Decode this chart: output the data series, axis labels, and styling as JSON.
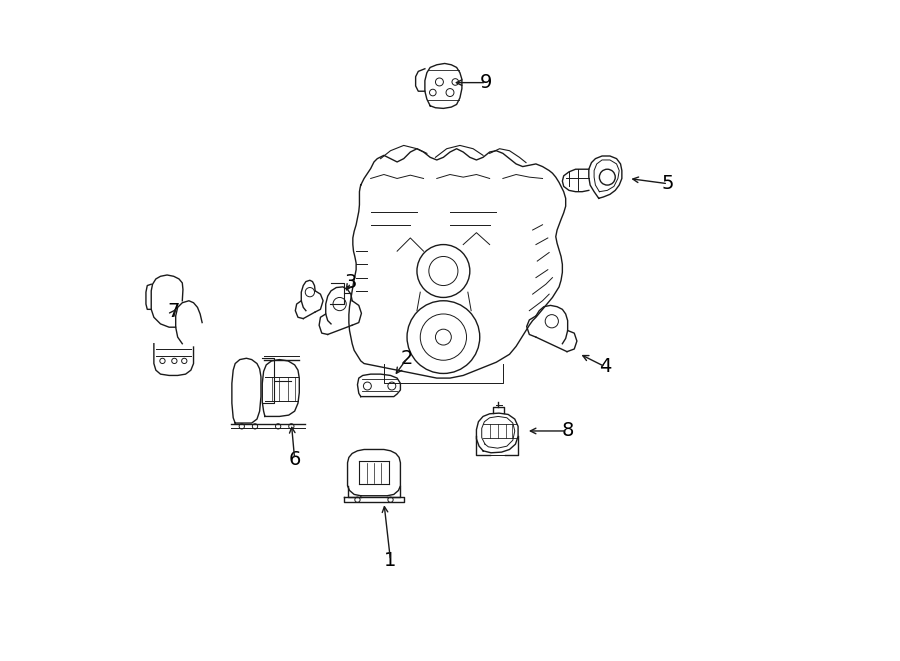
{
  "background_color": "#ffffff",
  "line_color": "#1a1a1a",
  "label_color": "#000000",
  "figsize": [
    9.0,
    6.61
  ],
  "dpi": 100
}
